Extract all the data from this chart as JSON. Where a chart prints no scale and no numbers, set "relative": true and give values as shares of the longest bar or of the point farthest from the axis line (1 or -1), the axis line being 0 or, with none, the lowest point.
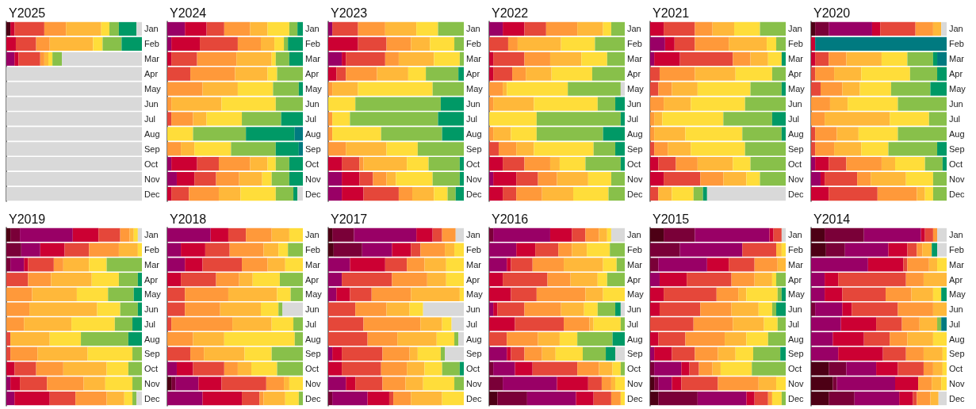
{
  "chart_data": [
    {
      "type": "bar",
      "title": "Y2025",
      "orientation": "horizontal",
      "stacked": true,
      "relative": true,
      "categories": [
        "Jan",
        "Feb",
        "Mar",
        "Apr",
        "May",
        "Jun",
        "Jul",
        "Aug",
        "Sep",
        "Oct",
        "Nov",
        "Dec"
      ],
      "series": [
        {
          "color": "#4d0015",
          "values": [
            0.03,
            0,
            0,
            0,
            0,
            0,
            0,
            0,
            0,
            0,
            0,
            0
          ]
        },
        {
          "color": "#990066",
          "values": [
            0,
            0,
            0.06,
            0,
            0,
            0,
            0,
            0,
            0,
            0,
            0,
            0
          ]
        },
        {
          "color": "#cc0033",
          "values": [
            0.03,
            0.07,
            0.03,
            0,
            0,
            0,
            0,
            0,
            0,
            0,
            0,
            0
          ]
        },
        {
          "color": "#e5473a",
          "values": [
            0.22,
            0.15,
            0.16,
            0,
            0,
            0,
            0,
            0,
            0,
            0,
            0,
            0
          ]
        },
        {
          "color": "#ff993a",
          "values": [
            0.16,
            0.1,
            0.03,
            0,
            0,
            0,
            0,
            0,
            0,
            0,
            0,
            0
          ]
        },
        {
          "color": "#ffb83a",
          "values": [
            0.26,
            0.32,
            0.03,
            0,
            0,
            0,
            0,
            0,
            0,
            0,
            0,
            0
          ]
        },
        {
          "color": "#ffdd3a",
          "values": [
            0.06,
            0.07,
            0.03,
            0,
            0,
            0,
            0,
            0,
            0,
            0,
            0,
            0
          ]
        },
        {
          "color": "#88c04a",
          "values": [
            0.07,
            0.14,
            0.07,
            0,
            0,
            0,
            0,
            0,
            0,
            0,
            0,
            0
          ]
        },
        {
          "color": "#009966",
          "values": [
            0.13,
            0.15,
            0,
            0,
            0,
            0,
            0,
            0,
            0,
            0,
            0,
            0
          ]
        },
        {
          "color": "#d9d9d9",
          "values": [
            0.04,
            0,
            0.59,
            1,
            1,
            1,
            1,
            1,
            1,
            1,
            1,
            1
          ]
        }
      ]
    },
    {
      "type": "bar",
      "title": "Y2024",
      "orientation": "horizontal",
      "stacked": true,
      "relative": true,
      "categories": [
        "Jan",
        "Feb",
        "Mar",
        "Apr",
        "May",
        "Jun",
        "Jul",
        "Aug",
        "Sep",
        "Oct",
        "Nov",
        "Dec"
      ],
      "series": [
        {
          "color": "#990066",
          "values": [
            0.13,
            0.03,
            0,
            0,
            0,
            0,
            0,
            0,
            0,
            0.03,
            0.07,
            0
          ]
        },
        {
          "color": "#cc0033",
          "values": [
            0.16,
            0.21,
            0.03,
            0,
            0,
            0,
            0,
            0,
            0,
            0.19,
            0.13,
            0.03
          ]
        },
        {
          "color": "#e5473a",
          "values": [
            0.13,
            0.28,
            0.19,
            0.17,
            0,
            0,
            0.03,
            0,
            0,
            0.16,
            0.16,
            0.13
          ]
        },
        {
          "color": "#ff993a",
          "values": [
            0.19,
            0.17,
            0.29,
            0.33,
            0.26,
            0.03,
            0.16,
            0,
            0.1,
            0.23,
            0.17,
            0.22
          ]
        },
        {
          "color": "#ffb83a",
          "values": [
            0.13,
            0.1,
            0.26,
            0.24,
            0.26,
            0.37,
            0.1,
            0,
            0.1,
            0.13,
            0.17,
            0.16
          ]
        },
        {
          "color": "#ffdd3a",
          "values": [
            0.16,
            0.07,
            0.03,
            0.07,
            0.26,
            0.4,
            0.26,
            0.19,
            0.27,
            0.06,
            0.07,
            0.26
          ]
        },
        {
          "color": "#88c04a",
          "values": [
            0.06,
            0.03,
            0.1,
            0.19,
            0.19,
            0.2,
            0.29,
            0.39,
            0.33,
            0.1,
            0.13,
            0.13
          ]
        },
        {
          "color": "#009966",
          "values": [
            0.04,
            0.11,
            0.1,
            0,
            0.03,
            0,
            0.16,
            0.36,
            0.17,
            0.1,
            0.1,
            0.03
          ]
        },
        {
          "color": "#007a80",
          "values": [
            0,
            0,
            0,
            0,
            0,
            0,
            0,
            0.06,
            0.03,
            0,
            0,
            0
          ]
        },
        {
          "color": "#d9d9d9",
          "values": [
            0,
            0,
            0,
            0,
            0,
            0,
            0,
            0,
            0,
            0,
            0,
            0.04
          ]
        }
      ]
    },
    {
      "type": "bar",
      "title": "Y2023",
      "orientation": "horizontal",
      "stacked": true,
      "relative": true,
      "categories": [
        "Jan",
        "Feb",
        "Mar",
        "Apr",
        "May",
        "Jun",
        "Jul",
        "Aug",
        "Sep",
        "Oct",
        "Nov",
        "Dec"
      ],
      "series": [
        {
          "color": "#990066",
          "values": [
            0.03,
            0,
            0.1,
            0,
            0,
            0,
            0,
            0,
            0,
            0,
            0.1,
            0.1
          ]
        },
        {
          "color": "#cc0033",
          "values": [
            0,
            0.22,
            0.03,
            0.06,
            0,
            0,
            0,
            0,
            0,
            0.1,
            0.13,
            0.16
          ]
        },
        {
          "color": "#e5473a",
          "values": [
            0.19,
            0.21,
            0.29,
            0.07,
            0,
            0,
            0,
            0,
            0,
            0.13,
            0.1,
            0.26
          ]
        },
        {
          "color": "#ff993a",
          "values": [
            0.2,
            0.18,
            0.1,
            0.23,
            0.03,
            0,
            0.03,
            0.03,
            0.13,
            0.03,
            0.1,
            0.1
          ]
        },
        {
          "color": "#ffb83a",
          "values": [
            0.23,
            0.14,
            0.26,
            0.23,
            0.19,
            0,
            0,
            0,
            0.3,
            0.32,
            0.07,
            0.16
          ]
        },
        {
          "color": "#ffdd3a",
          "values": [
            0.16,
            0.18,
            0.19,
            0.13,
            0.55,
            0.2,
            0.13,
            0.36,
            0.23,
            0.16,
            0.27,
            0.1
          ]
        },
        {
          "color": "#88c04a",
          "values": [
            0.19,
            0.07,
            0.03,
            0.24,
            0.23,
            0.63,
            0.65,
            0.45,
            0.34,
            0.23,
            0.2,
            0.06
          ]
        },
        {
          "color": "#009966",
          "values": [
            0,
            0,
            0,
            0.04,
            0,
            0.17,
            0.19,
            0.16,
            0,
            0.03,
            0.03,
            0.06
          ]
        }
      ]
    },
    {
      "type": "bar",
      "title": "Y2022",
      "orientation": "horizontal",
      "stacked": true,
      "relative": true,
      "categories": [
        "Jan",
        "Feb",
        "Mar",
        "Apr",
        "May",
        "Jun",
        "Jul",
        "Aug",
        "Sep",
        "Oct",
        "Nov",
        "Dec"
      ],
      "series": [
        {
          "color": "#990066",
          "values": [
            0.1,
            0,
            0,
            0,
            0,
            0,
            0,
            0,
            0,
            0,
            0.03,
            0
          ]
        },
        {
          "color": "#cc0033",
          "values": [
            0.16,
            0,
            0.03,
            0.03,
            0,
            0,
            0,
            0,
            0,
            0.1,
            0.17,
            0.1
          ]
        },
        {
          "color": "#e5473a",
          "values": [
            0.16,
            0.14,
            0.23,
            0.14,
            0,
            0,
            0,
            0,
            0.07,
            0.16,
            0.16,
            0.1
          ]
        },
        {
          "color": "#ff993a",
          "values": [
            0.23,
            0.07,
            0.19,
            0.1,
            0.1,
            0.03,
            0,
            0.03,
            0.13,
            0.19,
            0.14,
            0.19
          ]
        },
        {
          "color": "#ffb83a",
          "values": [
            0.19,
            0.32,
            0.23,
            0.19,
            0.03,
            0.3,
            0,
            0.13,
            0.13,
            0.07,
            0.23,
            0.23
          ]
        },
        {
          "color": "#ffdd3a",
          "values": [
            0.06,
            0.25,
            0.19,
            0.3,
            0.45,
            0.47,
            0.35,
            0.19,
            0.44,
            0.19,
            0.17,
            0.26
          ]
        },
        {
          "color": "#88c04a",
          "values": [
            0.1,
            0.22,
            0.13,
            0.24,
            0.39,
            0.13,
            0.62,
            0.49,
            0.16,
            0.26,
            0.1,
            0.12
          ]
        },
        {
          "color": "#009966",
          "values": [
            0,
            0,
            0,
            0,
            0,
            0.07,
            0.03,
            0.16,
            0.07,
            0.03,
            0,
            0
          ]
        },
        {
          "color": "#d9d9d9",
          "values": [
            0,
            0,
            0,
            0,
            0.03,
            0,
            0,
            0,
            0,
            0,
            0,
            0
          ]
        }
      ]
    },
    {
      "type": "bar",
      "title": "Y2021",
      "orientation": "horizontal",
      "stacked": true,
      "relative": true,
      "categories": [
        "Jan",
        "Feb",
        "Mar",
        "Apr",
        "May",
        "Jun",
        "Jul",
        "Aug",
        "Sep",
        "Oct",
        "Nov",
        "Dec"
      ],
      "series": [
        {
          "color": "#990066",
          "values": [
            0,
            0.11,
            0.03,
            0,
            0,
            0,
            0,
            0,
            0,
            0,
            0,
            0
          ]
        },
        {
          "color": "#cc0033",
          "values": [
            0.1,
            0.07,
            0.19,
            0,
            0,
            0,
            0,
            0,
            0,
            0.06,
            0.1,
            0
          ]
        },
        {
          "color": "#e5473a",
          "values": [
            0.23,
            0.15,
            0.39,
            0.07,
            0.06,
            0,
            0,
            0,
            0.03,
            0.13,
            0.27,
            0.06
          ]
        },
        {
          "color": "#ff993a",
          "values": [
            0.13,
            0.25,
            0.13,
            0.26,
            0.1,
            0.1,
            0.03,
            0.03,
            0.1,
            0.16,
            0.17,
            0
          ]
        },
        {
          "color": "#ffb83a",
          "values": [
            0.16,
            0.28,
            0.13,
            0.3,
            0.19,
            0.2,
            0.06,
            0.23,
            0.17,
            0.26,
            0.17,
            0.1
          ]
        },
        {
          "color": "#ffdd3a",
          "values": [
            0.19,
            0.07,
            0.1,
            0.27,
            0.39,
            0.4,
            0.45,
            0.42,
            0.4,
            0.13,
            0.1,
            0.16
          ]
        },
        {
          "color": "#88c04a",
          "values": [
            0.19,
            0.07,
            0,
            0.1,
            0.23,
            0.3,
            0.36,
            0.29,
            0.3,
            0.26,
            0.19,
            0.07
          ]
        },
        {
          "color": "#009966",
          "values": [
            0,
            0,
            0.03,
            0,
            0.03,
            0,
            0.1,
            0.03,
            0,
            0,
            0,
            0.03
          ]
        },
        {
          "color": "#d9d9d9",
          "values": [
            0,
            0,
            0,
            0,
            0,
            0,
            0,
            0,
            0,
            0,
            0,
            0.58
          ]
        }
      ]
    },
    {
      "type": "bar",
      "title": "Y2020",
      "orientation": "horizontal",
      "stacked": true,
      "relative": true,
      "categories": [
        "Jan",
        "Feb",
        "Mar",
        "Apr",
        "May",
        "Jun",
        "Jul",
        "Aug",
        "Sep",
        "Oct",
        "Nov",
        "Dec"
      ],
      "series": [
        {
          "color": "#4d0015",
          "values": [
            0.03,
            0,
            0,
            0,
            0,
            0,
            0,
            0,
            0,
            0,
            0,
            0
          ]
        },
        {
          "color": "#7a0038",
          "values": [
            0.1,
            0,
            0,
            0,
            0,
            0,
            0,
            0,
            0,
            0,
            0,
            0
          ]
        },
        {
          "color": "#990066",
          "values": [
            0.32,
            0,
            0,
            0,
            0,
            0,
            0,
            0,
            0,
            0.03,
            0.07,
            0
          ]
        },
        {
          "color": "#cc0033",
          "values": [
            0.06,
            0.03,
            0.03,
            0,
            0,
            0,
            0,
            0,
            0,
            0.1,
            0.03,
            0.13
          ]
        },
        {
          "color": "#e5473a",
          "values": [
            0.26,
            0,
            0.1,
            0.03,
            0.07,
            0,
            0,
            0.03,
            0.03,
            0.13,
            0.24,
            0.36
          ]
        },
        {
          "color": "#ff993a",
          "values": [
            0.13,
            0,
            0.13,
            0.14,
            0.16,
            0.14,
            0.1,
            0.16,
            0.14,
            0.26,
            0.1,
            0.29
          ]
        },
        {
          "color": "#ffb83a",
          "values": [
            0.06,
            0,
            0.26,
            0.2,
            0.13,
            0.13,
            0.48,
            0.16,
            0.2,
            0.1,
            0.26,
            0.06
          ]
        },
        {
          "color": "#ffdd3a",
          "values": [
            0,
            0,
            0.19,
            0.36,
            0.23,
            0.37,
            0.29,
            0.29,
            0.2,
            0.22,
            0.2,
            0.06
          ]
        },
        {
          "color": "#88c04a",
          "values": [
            0,
            0,
            0.19,
            0.2,
            0.29,
            0.36,
            0.13,
            0.36,
            0.36,
            0.13,
            0.1,
            0.1
          ]
        },
        {
          "color": "#009966",
          "values": [
            0,
            0,
            0.03,
            0.07,
            0.12,
            0,
            0,
            0,
            0.07,
            0.03,
            0,
            0
          ]
        },
        {
          "color": "#007a80",
          "values": [
            0,
            0.97,
            0.07,
            0,
            0,
            0,
            0,
            0,
            0,
            0,
            0,
            0
          ]
        },
        {
          "color": "#d9d9d9",
          "values": [
            0.04,
            0,
            0,
            0,
            0,
            0,
            0,
            0,
            0,
            0,
            0,
            0
          ]
        }
      ]
    },
    {
      "type": "bar",
      "title": "Y2019",
      "orientation": "horizontal",
      "stacked": true,
      "relative": true,
      "categories": [
        "Jan",
        "Feb",
        "Mar",
        "Apr",
        "May",
        "Jun",
        "Jul",
        "Aug",
        "Sep",
        "Oct",
        "Nov",
        "Dec"
      ],
      "series": [
        {
          "color": "#4d0015",
          "values": [
            0.03,
            0,
            0,
            0,
            0,
            0,
            0,
            0,
            0,
            0,
            0,
            0
          ]
        },
        {
          "color": "#7a0038",
          "values": [
            0.07,
            0.11,
            0.03,
            0,
            0,
            0,
            0,
            0,
            0,
            0,
            0,
            0
          ]
        },
        {
          "color": "#990066",
          "values": [
            0.39,
            0.14,
            0.1,
            0,
            0,
            0,
            0,
            0,
            0,
            0,
            0.03,
            0.06
          ]
        },
        {
          "color": "#cc0033",
          "values": [
            0.19,
            0.18,
            0.03,
            0,
            0,
            0,
            0,
            0,
            0,
            0.06,
            0.07,
            0.26
          ]
        },
        {
          "color": "#e5473a",
          "values": [
            0.16,
            0.18,
            0.19,
            0.16,
            0,
            0,
            0,
            0.03,
            0.03,
            0.16,
            0.2,
            0.19
          ]
        },
        {
          "color": "#ff993a",
          "values": [
            0.07,
            0.22,
            0.07,
            0.17,
            0.19,
            0.17,
            0.13,
            0,
            0.2,
            0.2,
            0.27,
            0.23
          ]
        },
        {
          "color": "#ffb83a",
          "values": [
            0.03,
            0.14,
            0.19,
            0.3,
            0.33,
            0.5,
            0.35,
            0.29,
            0.37,
            0.32,
            0.16,
            0.13
          ]
        },
        {
          "color": "#ffdd3a",
          "values": [
            0.03,
            0.03,
            0.13,
            0.2,
            0.23,
            0.17,
            0.32,
            0.23,
            0.33,
            0.16,
            0.2,
            0.06
          ]
        },
        {
          "color": "#88c04a",
          "values": [
            0,
            0,
            0.26,
            0.14,
            0.19,
            0.13,
            0.13,
            0.35,
            0.07,
            0.1,
            0.07,
            0.03
          ]
        },
        {
          "color": "#009966",
          "values": [
            0,
            0,
            0,
            0.03,
            0.06,
            0.03,
            0.07,
            0.1,
            0,
            0,
            0,
            0
          ]
        },
        {
          "color": "#d9d9d9",
          "values": [
            0.03,
            0,
            0,
            0,
            0,
            0,
            0,
            0,
            0,
            0,
            0,
            0.04
          ]
        }
      ]
    },
    {
      "type": "bar",
      "title": "Y2018",
      "orientation": "horizontal",
      "stacked": true,
      "relative": true,
      "categories": [
        "Jan",
        "Feb",
        "Mar",
        "Apr",
        "May",
        "Jun",
        "Jul",
        "Aug",
        "Sep",
        "Oct",
        "Nov",
        "Dec"
      ],
      "series": [
        {
          "color": "#4d0015",
          "values": [
            0,
            0,
            0,
            0,
            0,
            0,
            0,
            0,
            0,
            0,
            0.03,
            0
          ]
        },
        {
          "color": "#7a0038",
          "values": [
            0,
            0,
            0,
            0,
            0,
            0,
            0,
            0,
            0,
            0,
            0.03,
            0
          ]
        },
        {
          "color": "#990066",
          "values": [
            0.32,
            0.1,
            0.13,
            0,
            0,
            0,
            0,
            0,
            0,
            0.07,
            0.17,
            0.26
          ]
        },
        {
          "color": "#cc0033",
          "values": [
            0.13,
            0.18,
            0.13,
            0.1,
            0,
            0,
            0,
            0,
            0,
            0.12,
            0.17,
            0.29
          ]
        },
        {
          "color": "#e5473a",
          "values": [
            0.13,
            0.18,
            0.29,
            0.26,
            0.13,
            0.13,
            0.03,
            0,
            0.17,
            0.23,
            0.33,
            0.13
          ]
        },
        {
          "color": "#ff993a",
          "values": [
            0.19,
            0.25,
            0.19,
            0.17,
            0.32,
            0.26,
            0.45,
            0.19,
            0.1,
            0.1,
            0.13,
            0.03
          ]
        },
        {
          "color": "#ffb83a",
          "values": [
            0.13,
            0.11,
            0.13,
            0.1,
            0.36,
            0.3,
            0.29,
            0.23,
            0.3,
            0.1,
            0.04,
            0.16
          ]
        },
        {
          "color": "#ffdd3a",
          "values": [
            0.1,
            0.07,
            0.13,
            0.2,
            0.1,
            0.13,
            0.16,
            0.52,
            0.2,
            0.19,
            0.1,
            0.1
          ]
        },
        {
          "color": "#88c04a",
          "values": [
            0,
            0.11,
            0,
            0.17,
            0.09,
            0.03,
            0.07,
            0.06,
            0.23,
            0.19,
            0,
            0.03
          ]
        },
        {
          "color": "#d9d9d9",
          "values": [
            0,
            0,
            0,
            0,
            0,
            0.15,
            0,
            0,
            0,
            0,
            0,
            0
          ]
        }
      ]
    },
    {
      "type": "bar",
      "title": "Y2017",
      "orientation": "horizontal",
      "stacked": true,
      "relative": true,
      "categories": [
        "Jan",
        "Feb",
        "Mar",
        "Apr",
        "May",
        "Jun",
        "Jul",
        "Aug",
        "Sep",
        "Oct",
        "Nov",
        "Dec"
      ],
      "series": [
        {
          "color": "#4d0015",
          "values": [
            0.03,
            0.04,
            0,
            0,
            0,
            0,
            0,
            0,
            0,
            0,
            0,
            0
          ]
        },
        {
          "color": "#7a0038",
          "values": [
            0.16,
            0.21,
            0,
            0,
            0,
            0,
            0,
            0,
            0,
            0,
            0,
            0.03
          ]
        },
        {
          "color": "#990066",
          "values": [
            0.46,
            0.22,
            0.16,
            0.1,
            0.06,
            0,
            0,
            0,
            0.03,
            0,
            0.13,
            0.26
          ]
        },
        {
          "color": "#cc0033",
          "values": [
            0.12,
            0.14,
            0.26,
            0,
            0.1,
            0,
            0,
            0,
            0.07,
            0.1,
            0.07,
            0.16
          ]
        },
        {
          "color": "#e5473a",
          "values": [
            0.07,
            0.07,
            0.16,
            0.37,
            0.16,
            0.2,
            0.26,
            0.29,
            0.3,
            0.29,
            0.2,
            0.03
          ]
        },
        {
          "color": "#ff993a",
          "values": [
            0.1,
            0.18,
            0.13,
            0.26,
            0.29,
            0.23,
            0.42,
            0.22,
            0.2,
            0.19,
            0.17,
            0.13
          ]
        },
        {
          "color": "#ffb83a",
          "values": [
            0,
            0.07,
            0.16,
            0.14,
            0.36,
            0.17,
            0.16,
            0.29,
            0.06,
            0.13,
            0.13,
            0.23
          ]
        },
        {
          "color": "#ffdd3a",
          "values": [
            0,
            0.07,
            0.13,
            0.13,
            0.03,
            0.1,
            0.07,
            0.13,
            0.17,
            0.13,
            0.23,
            0.16
          ]
        },
        {
          "color": "#88c04a",
          "values": [
            0,
            0,
            0,
            0,
            0,
            0,
            0,
            0.03,
            0.03,
            0.13,
            0.07,
            0
          ]
        },
        {
          "color": "#009966",
          "values": [
            0,
            0,
            0,
            0,
            0,
            0,
            0,
            0,
            0,
            0.03,
            0,
            0
          ]
        },
        {
          "color": "#d9d9d9",
          "values": [
            0.06,
            0,
            0,
            0,
            0,
            0.3,
            0.09,
            0.04,
            0.14,
            0,
            0,
            0
          ]
        }
      ]
    },
    {
      "type": "bar",
      "title": "Y2016",
      "orientation": "horizontal",
      "stacked": true,
      "relative": true,
      "categories": [
        "Jan",
        "Feb",
        "Mar",
        "Apr",
        "May",
        "Jun",
        "Jul",
        "Aug",
        "Sep",
        "Oct",
        "Nov",
        "Dec"
      ],
      "series": [
        {
          "color": "#4d0015",
          "values": [
            0,
            0,
            0,
            0,
            0,
            0,
            0,
            0,
            0,
            0,
            0,
            0.06
          ]
        },
        {
          "color": "#7a0038",
          "values": [
            0.03,
            0,
            0,
            0,
            0,
            0,
            0,
            0,
            0,
            0.03,
            0.1,
            0.22
          ]
        },
        {
          "color": "#990066",
          "values": [
            0.42,
            0.2,
            0.13,
            0,
            0,
            0.03,
            0,
            0,
            0.13,
            0.16,
            0.4,
            0.36
          ]
        },
        {
          "color": "#cc0033",
          "values": [
            0.16,
            0.14,
            0.03,
            0.1,
            0.16,
            0.03,
            0.19,
            0,
            0.03,
            0.13,
            0.23,
            0.13
          ]
        },
        {
          "color": "#e5473a",
          "values": [
            0.1,
            0.17,
            0.16,
            0.33,
            0.19,
            0.2,
            0.36,
            0.13,
            0.1,
            0.33,
            0.1,
            0.13
          ]
        },
        {
          "color": "#ff993a",
          "values": [
            0.1,
            0.1,
            0.23,
            0.17,
            0.36,
            0.27,
            0.19,
            0.23,
            0.13,
            0.16,
            0.07,
            0.07
          ]
        },
        {
          "color": "#ffb83a",
          "values": [
            0.06,
            0.11,
            0.29,
            0.2,
            0.13,
            0.17,
            0.03,
            0.16,
            0.1,
            0.1,
            0.03,
            0
          ]
        },
        {
          "color": "#ffdd3a",
          "values": [
            0.03,
            0.17,
            0.1,
            0.07,
            0.16,
            0.1,
            0.2,
            0.13,
            0.2,
            0.06,
            0.07,
            0.03
          ]
        },
        {
          "color": "#88c04a",
          "values": [
            0,
            0.11,
            0.06,
            0.13,
            0,
            0.13,
            0.03,
            0.26,
            0.17,
            0.03,
            0,
            0
          ]
        },
        {
          "color": "#009966",
          "values": [
            0,
            0,
            0,
            0,
            0,
            0.04,
            0,
            0.09,
            0.07,
            0,
            0,
            0
          ]
        },
        {
          "color": "#d9d9d9",
          "values": [
            0.1,
            0,
            0,
            0,
            0,
            0.03,
            0,
            0,
            0.07,
            0,
            0,
            0
          ]
        }
      ]
    },
    {
      "type": "bar",
      "title": "Y2015",
      "orientation": "horizontal",
      "stacked": true,
      "relative": true,
      "categories": [
        "Jan",
        "Feb",
        "Mar",
        "Apr",
        "May",
        "Jun",
        "Jul",
        "Aug",
        "Sep",
        "Oct",
        "Nov",
        "Dec"
      ],
      "series": [
        {
          "color": "#4d0015",
          "values": [
            0.1,
            0,
            0,
            0,
            0,
            0,
            0,
            0,
            0,
            0,
            0.03,
            0.06
          ]
        },
        {
          "color": "#7a0038",
          "values": [
            0.23,
            0.22,
            0.06,
            0,
            0,
            0,
            0,
            0,
            0,
            0.03,
            0.03,
            0.29
          ]
        },
        {
          "color": "#990066",
          "values": [
            0.55,
            0.46,
            0.36,
            0.07,
            0,
            0,
            0,
            0,
            0.03,
            0.2,
            0.1,
            0.36
          ]
        },
        {
          "color": "#cc0033",
          "values": [
            0.03,
            0,
            0.16,
            0.2,
            0.1,
            0.07,
            0,
            0.06,
            0.13,
            0.06,
            0.07,
            0.06
          ]
        },
        {
          "color": "#e5473a",
          "values": [
            0.06,
            0.25,
            0.19,
            0.33,
            0.39,
            0.3,
            0.32,
            0.2,
            0.17,
            0.07,
            0.27,
            0.1
          ]
        },
        {
          "color": "#ff993a",
          "values": [
            0,
            0,
            0.17,
            0.17,
            0.16,
            0.23,
            0.29,
            0.29,
            0.17,
            0.1,
            0.3,
            0.03
          ]
        },
        {
          "color": "#ffb83a",
          "values": [
            0,
            0.04,
            0.06,
            0.13,
            0.06,
            0.2,
            0.23,
            0.16,
            0.13,
            0.06,
            0.13,
            0
          ]
        },
        {
          "color": "#ffdd3a",
          "values": [
            0,
            0.03,
            0,
            0.03,
            0.23,
            0.1,
            0.1,
            0.16,
            0.13,
            0.23,
            0.07,
            0.07
          ]
        },
        {
          "color": "#88c04a",
          "values": [
            0,
            0,
            0,
            0.07,
            0.03,
            0.03,
            0.06,
            0.13,
            0.2,
            0.25,
            0,
            0.03
          ]
        },
        {
          "color": "#009966",
          "values": [
            0,
            0,
            0,
            0,
            0.03,
            0.07,
            0,
            0,
            0.04,
            0,
            0,
            0
          ]
        },
        {
          "color": "#d9d9d9",
          "values": [
            0.03,
            0,
            0,
            0,
            0,
            0,
            0,
            0,
            0,
            0,
            0,
            0
          ]
        }
      ]
    },
    {
      "type": "bar",
      "title": "Y2014",
      "orientation": "horizontal",
      "stacked": true,
      "relative": true,
      "categories": [
        "Jan",
        "Feb",
        "Mar",
        "Apr",
        "May",
        "Jun",
        "Jul",
        "Aug",
        "Sep",
        "Oct",
        "Nov",
        "Dec"
      ],
      "series": [
        {
          "color": "#4d0015",
          "values": [
            0.1,
            0.11,
            0,
            0,
            0,
            0,
            0,
            0,
            0,
            0.13,
            0.16,
            0.13
          ]
        },
        {
          "color": "#7a0038",
          "values": [
            0.29,
            0.14,
            0,
            0,
            0,
            0.03,
            0,
            0,
            0,
            0.13,
            0.03,
            0.19
          ]
        },
        {
          "color": "#990066",
          "values": [
            0.42,
            0.32,
            0.42,
            0.1,
            0.1,
            0.2,
            0.22,
            0.16,
            0.2,
            0.22,
            0.43,
            0.33
          ]
        },
        {
          "color": "#cc0033",
          "values": [
            0.03,
            0.14,
            0.26,
            0.1,
            0.13,
            0.07,
            0.26,
            0.23,
            0.33,
            0.16,
            0.17,
            0.1
          ]
        },
        {
          "color": "#e5473a",
          "values": [
            0.06,
            0.07,
            0.03,
            0.5,
            0.32,
            0.34,
            0.19,
            0.19,
            0.17,
            0.19,
            0,
            0.03
          ]
        },
        {
          "color": "#ff993a",
          "values": [
            0.03,
            0.04,
            0.16,
            0.13,
            0.19,
            0.26,
            0.13,
            0.13,
            0.13,
            0.07,
            0.1,
            0.1
          ]
        },
        {
          "color": "#ffb83a",
          "values": [
            0,
            0.07,
            0.06,
            0.17,
            0.16,
            0.1,
            0.13,
            0.19,
            0.14,
            0.07,
            0.07,
            0.06
          ]
        },
        {
          "color": "#ffdd3a",
          "values": [
            0,
            0,
            0.07,
            0,
            0.06,
            0,
            0,
            0.1,
            0.03,
            0.03,
            0.04,
            0
          ]
        },
        {
          "color": "#88c04a",
          "values": [
            0,
            0,
            0,
            0,
            0,
            0,
            0.03,
            0,
            0,
            0,
            0,
            0
          ]
        },
        {
          "color": "#009966",
          "values": [
            0,
            0.04,
            0,
            0,
            0.04,
            0,
            0,
            0,
            0,
            0,
            0,
            0
          ]
        },
        {
          "color": "#007a80",
          "values": [
            0,
            0,
            0,
            0,
            0,
            0,
            0.04,
            0,
            0,
            0,
            0,
            0
          ]
        },
        {
          "color": "#d9d9d9",
          "values": [
            0.07,
            0.07,
            0,
            0,
            0,
            0,
            0,
            0,
            0,
            0,
            0,
            0.06
          ]
        }
      ]
    }
  ]
}
